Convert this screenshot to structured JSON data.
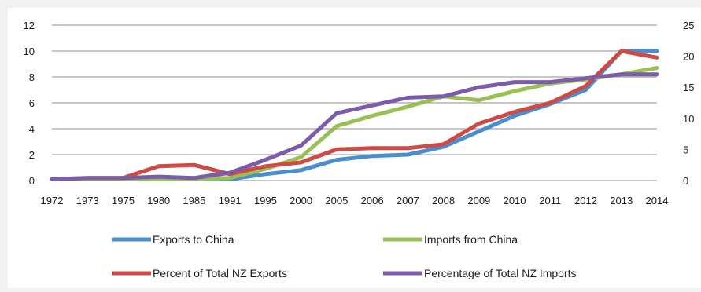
{
  "chart_data": {
    "type": "line",
    "categories": [
      "1972",
      "1973",
      "1975",
      "1980",
      "1985",
      "1991",
      "1995",
      "2000",
      "2005",
      "2006",
      "2007",
      "2008",
      "2009",
      "2010",
      "2011",
      "2012",
      "2013",
      "2014"
    ],
    "y_left": {
      "min": 0,
      "max": 12,
      "ticks": [
        "0",
        "2",
        "4",
        "6",
        "8",
        "10",
        "12"
      ]
    },
    "y_right": {
      "min": 0,
      "max": 25,
      "ticks": [
        "0",
        "5",
        "10",
        "15",
        "20",
        "25"
      ]
    },
    "grid": true,
    "legend_position": "bottom",
    "series": [
      {
        "name": "Exports to China",
        "axis": "left",
        "color": "#4a8ecf",
        "values": [
          0.1,
          0.1,
          0.1,
          0.1,
          0.1,
          0.1,
          0.5,
          0.8,
          1.6,
          1.9,
          2.0,
          2.6,
          3.8,
          5.0,
          5.9,
          7.0,
          10.0,
          10.0
        ]
      },
      {
        "name": "Imports from China",
        "axis": "left",
        "color": "#98c055",
        "values": [
          0.1,
          0.1,
          0.1,
          0.1,
          0.1,
          0.2,
          0.9,
          1.8,
          4.2,
          5.0,
          5.7,
          6.5,
          6.2,
          6.9,
          7.5,
          7.8,
          8.2,
          8.7
        ]
      },
      {
        "name": "Percent of Total NZ Exports",
        "axis": "left",
        "color": "#cd4a45",
        "values": [
          0.1,
          0.2,
          0.2,
          1.1,
          1.2,
          0.5,
          1.1,
          1.4,
          2.4,
          2.5,
          2.5,
          2.8,
          4.4,
          5.3,
          6.0,
          7.3,
          10.0,
          9.5
        ]
      },
      {
        "name": "Percentage of Total NZ Imports",
        "axis": "left",
        "color": "#7c5baa",
        "values": [
          0.1,
          0.2,
          0.2,
          0.3,
          0.2,
          0.6,
          1.6,
          2.7,
          5.2,
          5.8,
          6.4,
          6.5,
          7.2,
          7.6,
          7.6,
          7.9,
          8.2,
          8.2
        ]
      }
    ]
  }
}
